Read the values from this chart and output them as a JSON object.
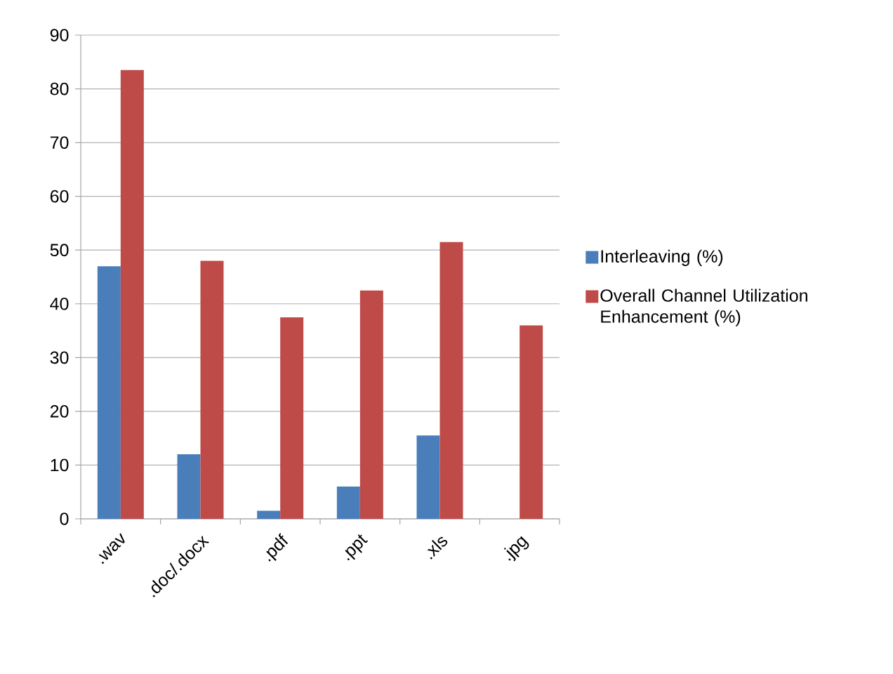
{
  "chart_data": {
    "type": "bar",
    "categories": [
      ".wav",
      ".doc/.docx",
      ".pdf",
      ".ppt",
      ".xls",
      ".jpg"
    ],
    "series": [
      {
        "name": "Interleaving (%)",
        "color": "#4a7ebb",
        "values": [
          47,
          12,
          1.5,
          6,
          15.5,
          0
        ]
      },
      {
        "name": "Overall Channel Utilization Enhancement (%)",
        "color": "#be4b48",
        "values": [
          83.5,
          48,
          37.5,
          42.5,
          51.5,
          36
        ]
      }
    ],
    "ylim": [
      0,
      90
    ],
    "yticks": [
      0,
      10,
      20,
      30,
      40,
      50,
      60,
      70,
      80,
      90
    ],
    "grid": "y",
    "legend": "right"
  }
}
